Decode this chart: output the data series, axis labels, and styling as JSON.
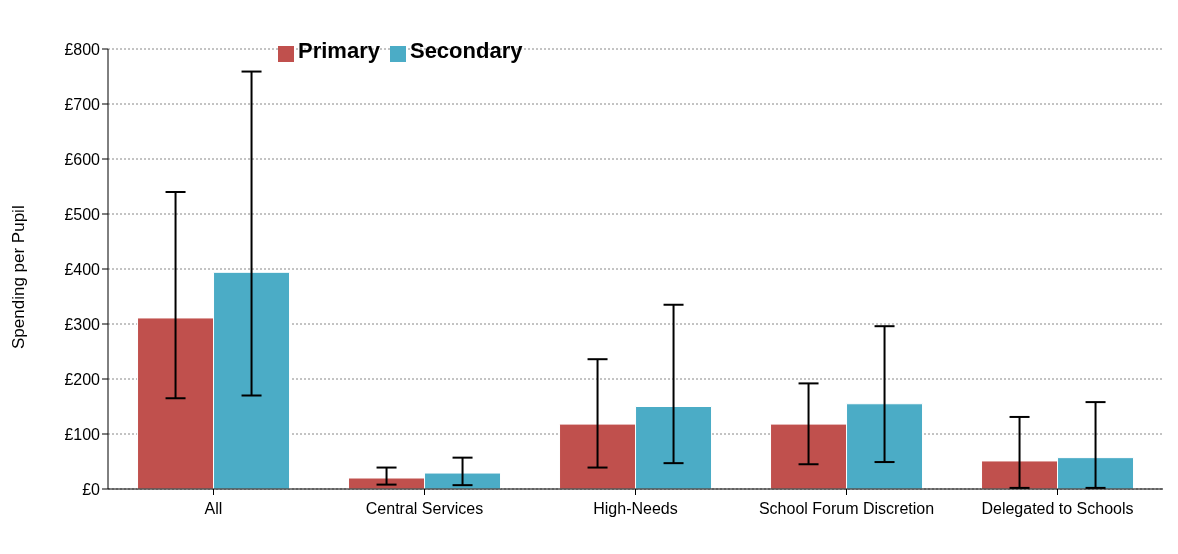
{
  "chart_data": {
    "type": "bar",
    "ylabel": "Spending per Pupil",
    "categories": [
      "All",
      "Central Services",
      "High-Needs",
      "School Forum Discretion",
      "Delegated to Schools"
    ],
    "series": [
      {
        "name": "Primary",
        "color": "#c0504d",
        "values": [
          311,
          20,
          118,
          118,
          51
        ],
        "errors": [
          [
            165,
            540
          ],
          [
            8,
            39
          ],
          [
            39,
            236
          ],
          [
            45,
            192
          ],
          [
            2,
            131
          ]
        ]
      },
      {
        "name": "Secondary",
        "color": "#4bacc6",
        "values": [
          394,
          29,
          150,
          155,
          57
        ],
        "errors": [
          [
            170,
            759
          ],
          [
            7,
            57
          ],
          [
            47,
            335
          ],
          [
            49,
            296
          ],
          [
            2,
            158
          ]
        ]
      }
    ],
    "ylim": [
      0,
      800
    ],
    "yticks": [
      {
        "value": 0,
        "label": "£0"
      },
      {
        "value": 100,
        "label": "£100"
      },
      {
        "value": 200,
        "label": "£200"
      },
      {
        "value": 300,
        "label": "£300"
      },
      {
        "value": 400,
        "label": "£400"
      },
      {
        "value": 500,
        "label": "£500"
      },
      {
        "value": 600,
        "label": "£600"
      },
      {
        "value": 700,
        "label": "£700"
      },
      {
        "value": 800,
        "label": "£800"
      }
    ],
    "grid": "y",
    "legend": "top left"
  }
}
